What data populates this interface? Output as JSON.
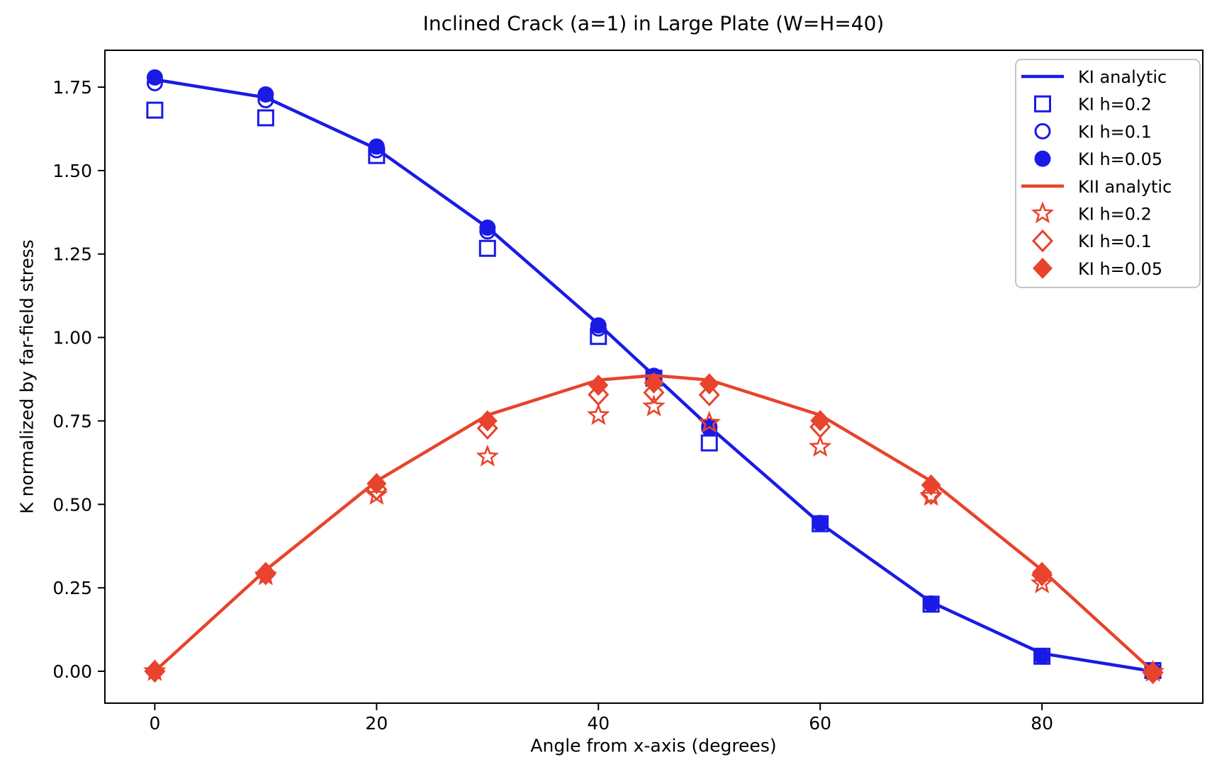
{
  "figure": {
    "title": "Inclined Crack (a=1) in Large Plate (W=H=40)",
    "xlabel": "Angle from x-axis (degrees)",
    "ylabel": "K normalized by far-field stress"
  },
  "colors": {
    "ki_blue": "#1a1ae6",
    "kii_red": "#e8432c",
    "axis": "#000000",
    "legend_border": "#b0b0b0",
    "background": "#ffffff"
  },
  "chart_data": {
    "type": "line+scatter",
    "title": "Inclined Crack (a=1) in Large Plate (W=H=40)",
    "xlabel": "Angle from x-axis (degrees)",
    "ylabel": "K normalized by far-field stress",
    "x": [
      0,
      10,
      20,
      30,
      40,
      45,
      50,
      60,
      70,
      80,
      90
    ],
    "xlim": [
      -4.5,
      94.5
    ],
    "ylim": [
      -0.0955,
      1.8604
    ],
    "xticks": {
      "values": [
        0,
        20,
        40,
        60,
        80
      ],
      "labels": [
        "0",
        "20",
        "40",
        "60",
        "80"
      ]
    },
    "yticks": {
      "values": [
        0.0,
        0.25,
        0.5,
        0.75,
        1.0,
        1.25,
        1.5,
        1.75
      ],
      "labels": [
        "0.00",
        "0.25",
        "0.50",
        "0.75",
        "1.00",
        "1.25",
        "1.50",
        "1.75"
      ]
    },
    "grid": false,
    "legend_position": "upper right",
    "series": [
      {
        "name": "KI analytic",
        "type": "line",
        "color": "ki_blue",
        "values": [
          1.7725,
          1.7189,
          1.565,
          1.3294,
          1.0401,
          0.8862,
          0.7324,
          0.4431,
          0.2073,
          0.0534,
          0.0
        ]
      },
      {
        "name": "KI h=0.2",
        "type": "scatter",
        "marker": "square-open",
        "color": "ki_blue",
        "values": [
          1.681,
          1.658,
          1.545,
          1.267,
          1.003,
          0.878,
          0.684,
          0.442,
          0.201,
          0.045,
          0.002
        ]
      },
      {
        "name": "KI h=0.1",
        "type": "scatter",
        "marker": "circle-open",
        "color": "ki_blue",
        "values": [
          1.762,
          1.711,
          1.561,
          1.318,
          1.027,
          0.883,
          0.734,
          0.443,
          0.202,
          0.046,
          0.002
        ]
      },
      {
        "name": "KI h=0.05",
        "type": "scatter",
        "marker": "circle-filled",
        "color": "ki_blue",
        "values": [
          1.779,
          1.728,
          1.572,
          1.329,
          1.036,
          0.885,
          0.728,
          0.444,
          0.203,
          0.044,
          0.001
        ]
      },
      {
        "name": "KII analytic",
        "type": "line",
        "color": "kii_red",
        "values": [
          0.0,
          0.3031,
          0.5697,
          0.7675,
          0.8727,
          0.8862,
          0.8727,
          0.7675,
          0.5697,
          0.3031,
          0.0
        ]
      },
      {
        "name": "KI h=0.2",
        "type": "scatter",
        "marker": "star-open",
        "color": "kii_red",
        "values": [
          0.0,
          0.287,
          0.528,
          0.643,
          0.767,
          0.793,
          0.744,
          0.672,
          0.525,
          0.263,
          -0.002
        ]
      },
      {
        "name": "KI h=0.1",
        "type": "scatter",
        "marker": "diamond-open",
        "color": "kii_red",
        "values": [
          0.0,
          0.292,
          0.545,
          0.728,
          0.829,
          0.835,
          0.828,
          0.732,
          0.532,
          0.289,
          -0.004
        ]
      },
      {
        "name": "KI h=0.05",
        "type": "scatter",
        "marker": "diamond-filled",
        "color": "kii_red",
        "values": [
          0.001,
          0.296,
          0.562,
          0.75,
          0.857,
          0.864,
          0.861,
          0.751,
          0.558,
          0.296,
          -0.006
        ]
      }
    ]
  }
}
